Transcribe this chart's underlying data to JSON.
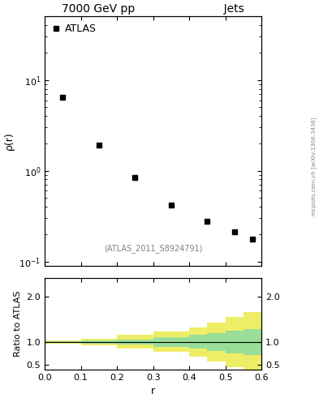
{
  "title_left": "7000 GeV pp",
  "title_right": "Jets",
  "ylabel_main": "ρ(r)",
  "ylabel_ratio": "Ratio to ATLAS",
  "xlabel": "r",
  "watermark": "(ATLAS_2011_S8924791)",
  "arxiv_text": "mcplots.cern.ch [arXiv:1306.3436]",
  "legend_label": "ATLAS",
  "data_x": [
    0.05,
    0.15,
    0.25,
    0.35,
    0.45,
    0.525,
    0.575
  ],
  "data_y": [
    6.5,
    1.9,
    0.85,
    0.42,
    0.28,
    0.21,
    0.175
  ],
  "marker_color": "black",
  "marker": "s",
  "marker_size": 4,
  "xlim": [
    0,
    0.6
  ],
  "ylim_main": [
    0.09,
    50
  ],
  "ylim_ratio": [
    0.4,
    2.4
  ],
  "ratio_yticks": [
    0.5,
    1.0,
    2.0
  ],
  "band_edges": [
    0.0,
    0.1,
    0.2,
    0.3,
    0.4,
    0.45,
    0.5,
    0.55,
    0.6
  ],
  "green_upper": [
    1.02,
    1.03,
    1.06,
    1.1,
    1.15,
    1.2,
    1.25,
    1.28
  ],
  "green_lower": [
    0.98,
    0.97,
    0.94,
    0.9,
    0.85,
    0.8,
    0.75,
    0.72
  ],
  "yellow_upper": [
    1.04,
    1.07,
    1.15,
    1.22,
    1.32,
    1.42,
    1.55,
    1.65
  ],
  "yellow_lower": [
    0.96,
    0.93,
    0.85,
    0.78,
    0.68,
    0.58,
    0.45,
    0.35
  ],
  "green_color": "#99dd99",
  "yellow_color": "#eeee66",
  "ratio_line_y": 1.0,
  "background_color": "white",
  "font_size_title": 10,
  "font_size_label": 9,
  "font_size_tick": 8,
  "font_size_watermark": 7
}
